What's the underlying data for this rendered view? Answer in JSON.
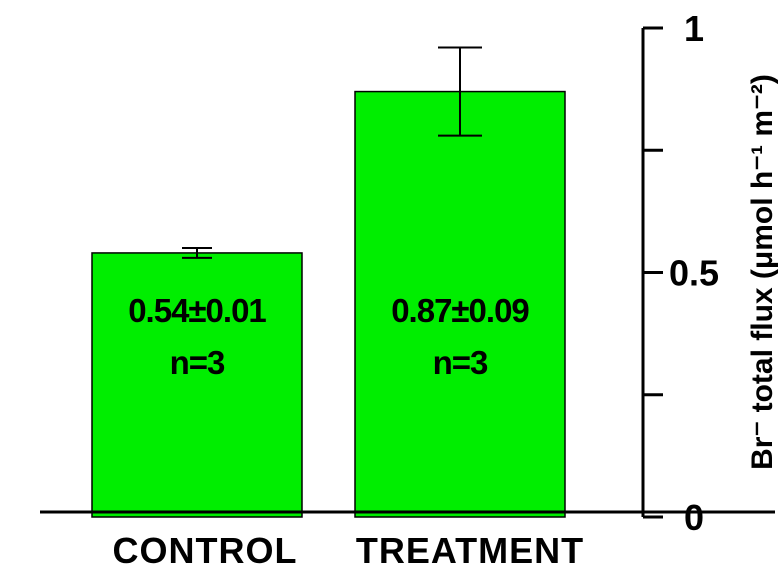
{
  "chart_data": {
    "type": "bar",
    "title": "",
    "xlabel": "",
    "ylabel": "Br⁻ total flux (μmol h⁻¹ m⁻²)",
    "ylim": [
      0,
      1
    ],
    "yticks": [
      0,
      0.25,
      0.5,
      0.75,
      1
    ],
    "ytick_labels": [
      "0",
      "",
      "0.5",
      "",
      "1"
    ],
    "y_axis_position": "right",
    "grid": false,
    "bar_color": "#00ee00",
    "categories": [
      "CONTROL",
      "TREATMENT"
    ],
    "values": [
      0.54,
      0.87
    ],
    "errors": [
      0.01,
      0.09
    ],
    "bar_labels": [
      {
        "mean_sd": "0.54±0.01",
        "n": "n=3"
      },
      {
        "mean_sd": "0.87±0.09",
        "n": "n=3"
      }
    ]
  }
}
